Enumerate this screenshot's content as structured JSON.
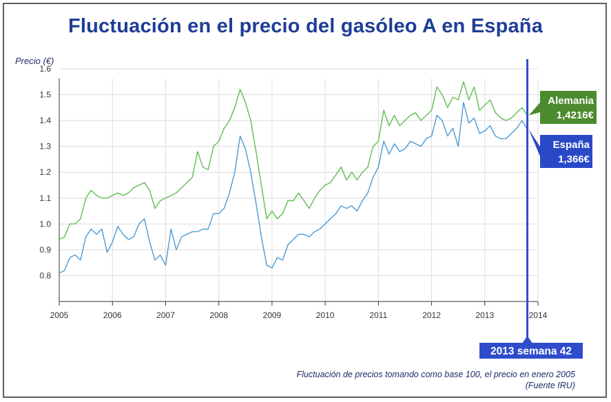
{
  "chart_data": {
    "type": "line",
    "title": "Fluctuación en el precio del gasóleo A en España",
    "ylabel": "Precio (€)",
    "xlabel": "",
    "ylim": [
      0.7,
      1.6
    ],
    "xlim": [
      2005,
      2014
    ],
    "grid": true,
    "x_ticks": [
      "2005",
      "2006",
      "2007",
      "2008",
      "2009",
      "2010",
      "2011",
      "2012",
      "2013",
      "2014"
    ],
    "y_ticks": [
      "0.8",
      "0.9",
      "1.0",
      "1.1",
      "1.2",
      "1.3",
      "1.4",
      "1.5",
      "1.6"
    ],
    "series": [
      {
        "name": "Alemania",
        "color": "#5cbf4f",
        "end_label": "1,4216€",
        "label_color": "#4c8a2e",
        "x": [
          2005.0,
          2005.1,
          2005.2,
          2005.3,
          2005.4,
          2005.5,
          2005.6,
          2005.7,
          2005.8,
          2005.9,
          2006.0,
          2006.1,
          2006.2,
          2006.3,
          2006.4,
          2006.5,
          2006.6,
          2006.7,
          2006.8,
          2006.9,
          2007.0,
          2007.1,
          2007.2,
          2007.3,
          2007.4,
          2007.5,
          2007.6,
          2007.7,
          2007.8,
          2007.9,
          2008.0,
          2008.1,
          2008.2,
          2008.3,
          2008.4,
          2008.5,
          2008.6,
          2008.7,
          2008.8,
          2008.9,
          2009.0,
          2009.1,
          2009.2,
          2009.3,
          2009.4,
          2009.5,
          2009.6,
          2009.7,
          2009.8,
          2009.9,
          2010.0,
          2010.1,
          2010.2,
          2010.3,
          2010.4,
          2010.5,
          2010.6,
          2010.7,
          2010.8,
          2010.9,
          2011.0,
          2011.1,
          2011.2,
          2011.3,
          2011.4,
          2011.5,
          2011.6,
          2011.7,
          2011.8,
          2011.9,
          2012.0,
          2012.1,
          2012.2,
          2012.3,
          2012.4,
          2012.5,
          2012.6,
          2012.7,
          2012.8,
          2012.9,
          2013.0,
          2013.1,
          2013.2,
          2013.3,
          2013.4,
          2013.5,
          2013.6,
          2013.7,
          2013.8
        ],
        "y": [
          0.94,
          0.95,
          1.0,
          1.0,
          1.02,
          1.1,
          1.13,
          1.11,
          1.1,
          1.1,
          1.11,
          1.12,
          1.11,
          1.12,
          1.14,
          1.15,
          1.16,
          1.13,
          1.06,
          1.09,
          1.1,
          1.11,
          1.12,
          1.14,
          1.16,
          1.18,
          1.28,
          1.22,
          1.21,
          1.3,
          1.32,
          1.37,
          1.4,
          1.45,
          1.52,
          1.47,
          1.4,
          1.28,
          1.15,
          1.02,
          1.05,
          1.02,
          1.04,
          1.09,
          1.09,
          1.12,
          1.09,
          1.06,
          1.1,
          1.13,
          1.15,
          1.16,
          1.19,
          1.22,
          1.17,
          1.2,
          1.17,
          1.2,
          1.22,
          1.3,
          1.32,
          1.44,
          1.38,
          1.42,
          1.38,
          1.4,
          1.42,
          1.43,
          1.4,
          1.42,
          1.44,
          1.53,
          1.5,
          1.45,
          1.49,
          1.48,
          1.55,
          1.48,
          1.53,
          1.44,
          1.46,
          1.48,
          1.43,
          1.41,
          1.4,
          1.41,
          1.43,
          1.45,
          1.42
        ]
      },
      {
        "name": "España",
        "color": "#4a9ad6",
        "end_label": "1,366€",
        "label_color": "#2a49c7",
        "x": [
          2005.0,
          2005.1,
          2005.2,
          2005.3,
          2005.4,
          2005.5,
          2005.6,
          2005.7,
          2005.8,
          2005.9,
          2006.0,
          2006.1,
          2006.2,
          2006.3,
          2006.4,
          2006.5,
          2006.6,
          2006.7,
          2006.8,
          2006.9,
          2007.0,
          2007.1,
          2007.2,
          2007.3,
          2007.4,
          2007.5,
          2007.6,
          2007.7,
          2007.8,
          2007.9,
          2008.0,
          2008.1,
          2008.2,
          2008.3,
          2008.4,
          2008.5,
          2008.6,
          2008.7,
          2008.8,
          2008.9,
          2009.0,
          2009.1,
          2009.2,
          2009.3,
          2009.4,
          2009.5,
          2009.6,
          2009.7,
          2009.8,
          2009.9,
          2010.0,
          2010.1,
          2010.2,
          2010.3,
          2010.4,
          2010.5,
          2010.6,
          2010.7,
          2010.8,
          2010.9,
          2011.0,
          2011.1,
          2011.2,
          2011.3,
          2011.4,
          2011.5,
          2011.6,
          2011.7,
          2011.8,
          2011.9,
          2012.0,
          2012.1,
          2012.2,
          2012.3,
          2012.4,
          2012.5,
          2012.6,
          2012.7,
          2012.8,
          2012.9,
          2013.0,
          2013.1,
          2013.2,
          2013.3,
          2013.4,
          2013.5,
          2013.6,
          2013.7,
          2013.8
        ],
        "y": [
          0.81,
          0.82,
          0.87,
          0.88,
          0.86,
          0.95,
          0.98,
          0.96,
          0.98,
          0.89,
          0.93,
          0.99,
          0.96,
          0.94,
          0.95,
          1.0,
          1.02,
          0.93,
          0.86,
          0.88,
          0.84,
          0.98,
          0.9,
          0.95,
          0.96,
          0.97,
          0.97,
          0.98,
          0.98,
          1.04,
          1.04,
          1.06,
          1.12,
          1.2,
          1.34,
          1.29,
          1.2,
          1.08,
          0.95,
          0.84,
          0.83,
          0.87,
          0.86,
          0.92,
          0.94,
          0.96,
          0.96,
          0.95,
          0.97,
          0.98,
          1.0,
          1.02,
          1.04,
          1.07,
          1.06,
          1.07,
          1.05,
          1.09,
          1.12,
          1.18,
          1.22,
          1.32,
          1.27,
          1.31,
          1.28,
          1.29,
          1.32,
          1.31,
          1.3,
          1.33,
          1.34,
          1.42,
          1.4,
          1.34,
          1.37,
          1.3,
          1.47,
          1.39,
          1.41,
          1.35,
          1.36,
          1.38,
          1.34,
          1.33,
          1.33,
          1.35,
          1.37,
          1.4,
          1.366
        ]
      }
    ],
    "marker": {
      "x": 2013.8,
      "label": "2013 semana 42",
      "color": "#2f4ccc"
    },
    "footnote_line1": "Fluctuación de precios tomando como base 100, el precio en enero 2005",
    "footnote_line2": "(Fuente IRU)"
  }
}
